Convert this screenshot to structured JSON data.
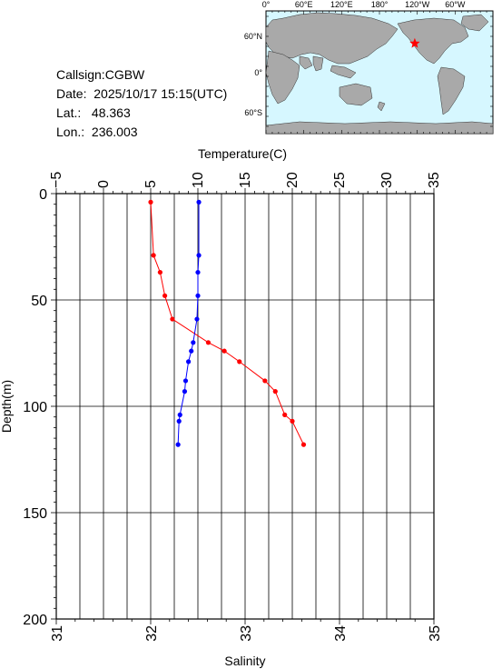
{
  "station": {
    "callsign_label": "Callsign:",
    "callsign": "CGBW",
    "date_label": "Date:",
    "date": "2025/10/17 15:15(UTC)",
    "lat_label": "Lat.:",
    "lat": "48.363",
    "lon_label": "Lon.:",
    "lon": "236.003"
  },
  "map": {
    "lon_ticks": [
      "0°",
      "60°E",
      "120°E",
      "180°",
      "120°W",
      "60°W"
    ],
    "lat_ticks": [
      "60°N",
      "0°",
      "60°S"
    ],
    "station_marker_color": "#ff0000",
    "ocean_color": "#d6f7ff",
    "land_color": "#a9a9a9"
  },
  "chart_data": {
    "type": "line",
    "title": "",
    "depth_axis": {
      "label": "Depth(m)",
      "ticks": [
        "0",
        "50",
        "100",
        "150",
        "200"
      ],
      "range": [
        0,
        200
      ],
      "inverted": true
    },
    "temperature_axis": {
      "label": "Temperature(C)",
      "ticks": [
        "−5",
        "0",
        "5",
        "10",
        "15",
        "20",
        "25",
        "30",
        "35"
      ],
      "range": [
        -5,
        35
      ],
      "position": "top"
    },
    "salinity_axis": {
      "label": "Salinity",
      "ticks": [
        "31",
        "32",
        "33",
        "34",
        "35"
      ],
      "range": [
        31,
        35
      ],
      "position": "bottom"
    },
    "grid": true,
    "series": [
      {
        "name": "Temperature",
        "axis": "temperature",
        "color": "#ff0000",
        "depth": [
          4,
          29,
          37,
          48,
          59,
          70,
          74,
          79,
          88,
          93,
          104,
          107,
          118
        ],
        "values": [
          5.0,
          5.3,
          6.0,
          6.5,
          7.3,
          11.1,
          12.8,
          14.4,
          17.1,
          18.2,
          19.2,
          20.0,
          21.2
        ]
      },
      {
        "name": "Salinity",
        "axis": "salinity",
        "color": "#0000ff",
        "depth": [
          4,
          29,
          37,
          48,
          59,
          70,
          74,
          79,
          88,
          93,
          104,
          107,
          118
        ],
        "values": [
          32.51,
          32.51,
          32.5,
          32.5,
          32.49,
          32.45,
          32.43,
          32.4,
          32.37,
          32.36,
          32.31,
          32.3,
          32.29
        ]
      }
    ]
  }
}
